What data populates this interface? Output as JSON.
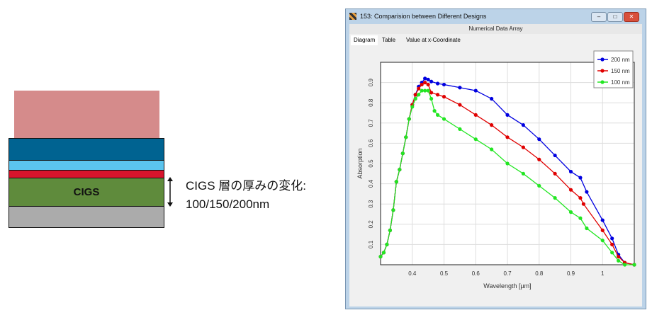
{
  "diagram": {
    "cigs_label": "CIGS",
    "caption_line1": "CIGS 層の厚みの変化:",
    "caption_line2": "100/150/200nm",
    "colors": {
      "top": "#d58b8b",
      "navy": "#006391",
      "lightblue": "#5bc4ee",
      "red": "#d7142c",
      "green": "#5f8b3c",
      "gray": "#ababab"
    }
  },
  "window": {
    "title": "153: Comparision between Different Designs",
    "subtitle": "Numerical Data Array",
    "tabs": [
      "Diagram",
      "Table",
      "Value at x-Coordinate"
    ],
    "buttons": {
      "minimize": "–",
      "maximize": "□",
      "close": "✕"
    }
  },
  "chart_data": {
    "type": "line",
    "xlabel": "Wavelength [µm]",
    "ylabel": "Absorption",
    "xlim": [
      0.3,
      1.1
    ],
    "ylim": [
      0,
      1
    ],
    "xticks": [
      "0.4",
      "0.5",
      "0.6",
      "0.7",
      "0.8",
      "0.9",
      "1"
    ],
    "xtick_values": [
      0.4,
      0.5,
      0.6,
      0.7,
      0.8,
      0.9,
      1.0
    ],
    "yticks": [
      "0.1",
      "0.2",
      "0.3",
      "0.4",
      "0.5",
      "0.6",
      "0.7",
      "0.8",
      "0.9"
    ],
    "ytick_values": [
      0.1,
      0.2,
      0.3,
      0.4,
      0.5,
      0.6,
      0.7,
      0.8,
      0.9
    ],
    "legend_position": "top-right",
    "grid": true,
    "series": [
      {
        "name": "200 nm",
        "color": "#0000e0",
        "x": [
          0.3,
          0.31,
          0.32,
          0.33,
          0.34,
          0.35,
          0.36,
          0.37,
          0.38,
          0.39,
          0.4,
          0.41,
          0.42,
          0.43,
          0.44,
          0.45,
          0.46,
          0.48,
          0.5,
          0.55,
          0.6,
          0.65,
          0.7,
          0.75,
          0.8,
          0.85,
          0.9,
          0.93,
          0.95,
          1.0,
          1.03,
          1.05,
          1.07,
          1.1
        ],
        "y": [
          0.04,
          0.06,
          0.1,
          0.17,
          0.27,
          0.41,
          0.47,
          0.55,
          0.63,
          0.72,
          0.79,
          0.84,
          0.88,
          0.9,
          0.92,
          0.915,
          0.905,
          0.895,
          0.89,
          0.875,
          0.86,
          0.82,
          0.74,
          0.69,
          0.62,
          0.54,
          0.46,
          0.43,
          0.36,
          0.22,
          0.13,
          0.05,
          0.01,
          0.0
        ]
      },
      {
        "name": "150 nm",
        "color": "#e00000",
        "x": [
          0.3,
          0.31,
          0.32,
          0.33,
          0.34,
          0.35,
          0.36,
          0.37,
          0.38,
          0.39,
          0.4,
          0.41,
          0.42,
          0.43,
          0.44,
          0.45,
          0.46,
          0.48,
          0.5,
          0.55,
          0.6,
          0.65,
          0.7,
          0.75,
          0.8,
          0.85,
          0.9,
          0.93,
          0.94,
          1.0,
          1.03,
          1.05,
          1.07,
          1.1
        ],
        "y": [
          0.04,
          0.06,
          0.1,
          0.17,
          0.27,
          0.41,
          0.47,
          0.55,
          0.63,
          0.72,
          0.79,
          0.84,
          0.87,
          0.89,
          0.9,
          0.89,
          0.85,
          0.84,
          0.83,
          0.79,
          0.74,
          0.69,
          0.63,
          0.58,
          0.52,
          0.45,
          0.37,
          0.33,
          0.3,
          0.17,
          0.1,
          0.04,
          0.01,
          0.0
        ]
      },
      {
        "name": "100 nm",
        "color": "#22e622",
        "x": [
          0.3,
          0.31,
          0.32,
          0.33,
          0.34,
          0.35,
          0.36,
          0.37,
          0.38,
          0.39,
          0.4,
          0.41,
          0.42,
          0.43,
          0.44,
          0.45,
          0.46,
          0.47,
          0.48,
          0.5,
          0.55,
          0.6,
          0.65,
          0.7,
          0.75,
          0.8,
          0.85,
          0.9,
          0.93,
          0.95,
          1.0,
          1.03,
          1.05,
          1.07,
          1.1
        ],
        "y": [
          0.04,
          0.06,
          0.1,
          0.17,
          0.27,
          0.41,
          0.47,
          0.55,
          0.63,
          0.72,
          0.78,
          0.82,
          0.84,
          0.86,
          0.86,
          0.86,
          0.82,
          0.76,
          0.74,
          0.72,
          0.67,
          0.62,
          0.57,
          0.5,
          0.45,
          0.39,
          0.33,
          0.26,
          0.23,
          0.18,
          0.12,
          0.06,
          0.02,
          0.0,
          0.0
        ]
      }
    ]
  }
}
